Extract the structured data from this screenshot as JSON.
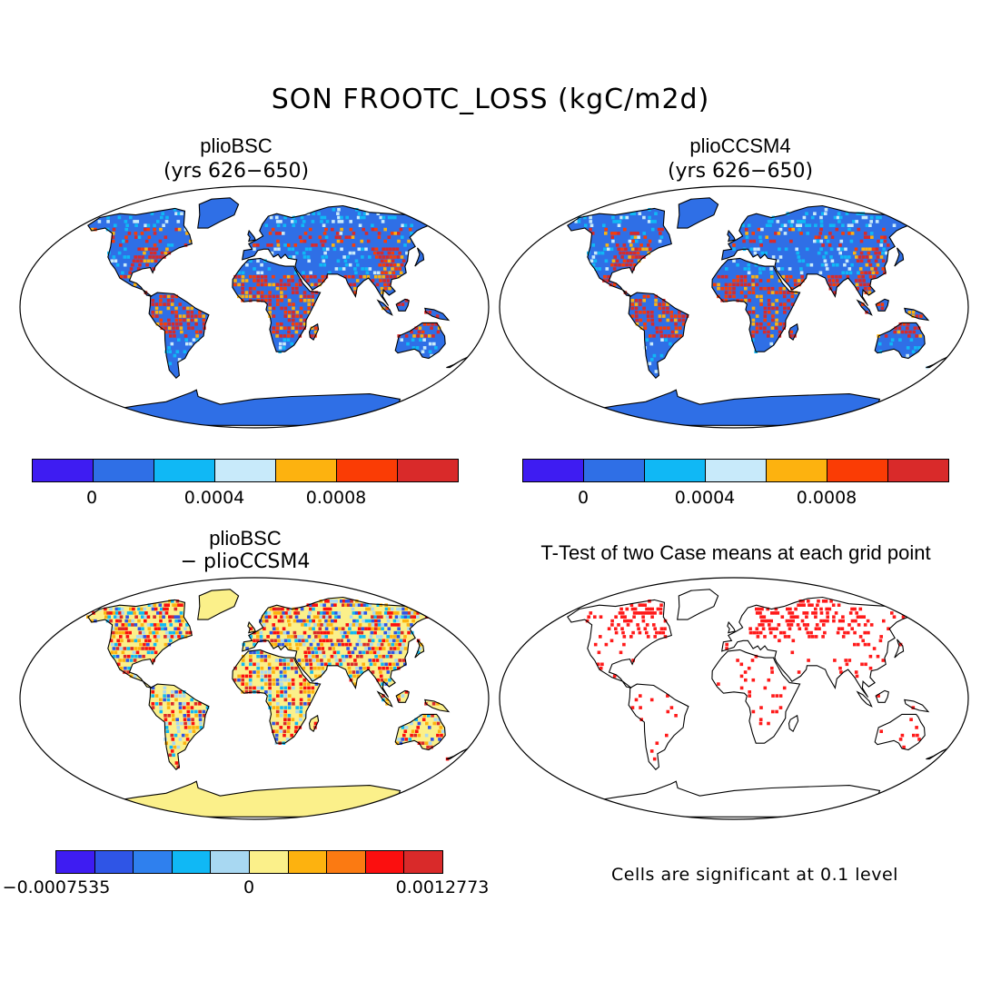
{
  "title": "SON FROOTC_LOSS (kgC/m2d)",
  "panels": [
    {
      "id": "plioBSC",
      "title": "plioBSC",
      "subtitle": "(yrs 626−650)",
      "colorbar": {
        "colors": [
          "#3e1cf2",
          "#2f6fe6",
          "#10b8f5",
          "#c8eafa",
          "#fdb20f",
          "#fa3c05",
          "#d92a2a"
        ],
        "tick_labels": [
          "0",
          "0.0004",
          "0.0008"
        ]
      }
    },
    {
      "id": "plioCCSM4",
      "title": "plioCCSM4",
      "subtitle": "(yrs 626−650)",
      "colorbar": {
        "colors": [
          "#3e1cf2",
          "#2f6fe6",
          "#10b8f5",
          "#c8eafa",
          "#fdb20f",
          "#fa3c05",
          "#d92a2a"
        ],
        "tick_labels": [
          "0",
          "0.0004",
          "0.0008"
        ]
      }
    },
    {
      "id": "difference",
      "title": "plioBSC",
      "subtitle": "− plioCCSM4",
      "colorbar": {
        "colors": [
          "#3e1cf2",
          "#2f55e6",
          "#2f80ee",
          "#10b8f5",
          "#a8d8f2",
          "#fbf08a",
          "#fdb20f",
          "#fb7a12",
          "#fb0f0f",
          "#d92a2a"
        ],
        "tick_labels": [
          "−0.0007535",
          "0",
          "0.0012773"
        ],
        "min": -0.0007535,
        "max": 0.0012773
      }
    },
    {
      "id": "ttest",
      "title": "T-Test of two Case means at each grid point",
      "note": "Cells are significant at 0.1 level",
      "significance_level": 0.1
    }
  ],
  "colors": {
    "land_base": "#2f6fe6",
    "diff_base": "#fbf08a",
    "significant": "#ff1a1a",
    "coast": "#000000"
  }
}
